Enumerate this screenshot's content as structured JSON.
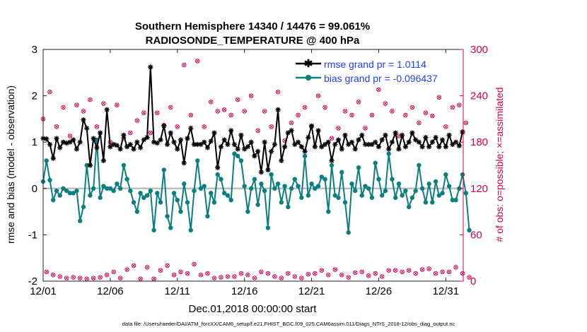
{
  "chart_data": {
    "type": "line",
    "title_line1": "Southern Hemisphere 14340 / 14476 = 99.061%",
    "title_line2": "RADIOSONDE_TEMPERATURE @ 400 hPa",
    "xlabel": "Dec.01,2018 00:00:00 start",
    "ylabel_left": "rmse and bias (model - observation)",
    "ylabel_right": "# of obs: o=possible; ×=assimilated",
    "footer": "data file: /Users/raeder/DAI/ATM_forcXX/CAM6_setup/f.e21.FHIST_BGC.f09_025.CAM6assim.011/Diags_NTrS_2018-12/obs_diag_output.nc",
    "xlim": [
      1,
      32.3
    ],
    "ylim_left": [
      -2,
      3
    ],
    "ylim_right": [
      0,
      300
    ],
    "x_ticks": [
      1,
      6,
      11,
      16,
      21,
      26,
      31
    ],
    "x_tick_labels": [
      "12/01",
      "12/06",
      "12/11",
      "12/16",
      "12/21",
      "12/26",
      "12/31"
    ],
    "y_left_ticks": [
      -2,
      -1,
      0,
      1,
      2,
      3
    ],
    "y_left_tick_labels": [
      "-2",
      "-1",
      "0",
      "1",
      "2",
      "3"
    ],
    "y_right_ticks": [
      0,
      60,
      120,
      180,
      240,
      300
    ],
    "y_right_tick_labels": [
      "0",
      "60",
      "120",
      "180",
      "240",
      "300"
    ],
    "time_step_days": 0.25,
    "legend": {
      "position": "top-right",
      "entries": [
        "rmse grand pr = 1.0114",
        "bias grand pr = -0.096437"
      ]
    },
    "colors": {
      "rmse": "#000000",
      "bias": "#0a7f7f",
      "obs_count": "#d6004f",
      "zero_line": "#c0c0c0",
      "legend_text": "#1f3fff",
      "right_axis": "#d6004f"
    },
    "series": [
      {
        "name": "rmse",
        "axis": "left",
        "marker": "asterisk",
        "values": [
          1.08,
          1.07,
          0.95,
          0.65,
          1.08,
          0.88,
          1.0,
          0.98,
          1.0,
          1.05,
          0.85,
          1.0,
          1.48,
          1.3,
          0.5,
          1.08,
          0.88,
          1.2,
          0.6,
          1.7,
          0.9,
          0.95,
          0.93,
          0.85,
          1.15,
          0.9,
          0.95,
          0.85,
          1.0,
          0.88,
          1.05,
          1.1,
          2.62,
          1.0,
          0.98,
          1.05,
          1.35,
          0.95,
          1.2,
          1.0,
          0.85,
          1.05,
          0.55,
          1.08,
          1.3,
          0.95,
          0.95,
          0.95,
          1.0,
          0.88,
          1.02,
          1.2,
          0.45,
          0.9,
          1.05,
          0.95,
          1.25,
          0.95,
          0.85,
          1.15,
          0.85,
          0.9,
          1.0,
          0.7,
          0.8,
          0.35,
          1.0,
          0.4,
          0.8,
          0.95,
          1.7,
          0.6,
          0.9,
          1.2,
          1.25,
          0.95,
          1.0,
          0.9,
          0.8,
          1.1,
          1.35,
          0.9,
          1.25,
          0.9,
          0.95,
          1.0,
          0.6,
          0.95,
          1.05,
          0.85,
          1.15,
          0.95,
          1.0,
          0.85,
          1.05,
          1.15,
          0.95,
          0.95,
          0.95,
          1.0,
          0.9,
          1.05,
          1.15,
          0.85,
          1.0,
          1.2,
          0.85,
          1.15,
          0.9,
          1.0,
          1.2,
          1.05,
          1.0,
          0.9,
          1.1,
          0.9,
          1.0,
          1.1,
          0.9,
          1.05,
          0.9,
          1.15,
          0.95,
          1.0,
          0.92,
          1.22
        ]
      },
      {
        "name": "bias",
        "axis": "left",
        "marker": "circle",
        "values": [
          0.15,
          0.6,
          0.18,
          -0.25,
          -0.05,
          -0.15,
          0.0,
          -0.05,
          -0.1,
          -0.1,
          -0.05,
          -0.7,
          -0.4,
          0.5,
          -0.15,
          0.0,
          1.05,
          -0.2,
          0.05,
          0.0,
          0.0,
          -0.05,
          0.1,
          0.0,
          0.5,
          0.2,
          -0.05,
          -0.3,
          -0.5,
          -0.1,
          -0.2,
          -0.15,
          -0.05,
          -0.9,
          -0.1,
          -0.3,
          0.4,
          -0.6,
          -0.85,
          -0.1,
          -0.25,
          -0.5,
          0.1,
          -0.3,
          -0.9,
          -0.05,
          0.6,
          0.0,
          0.05,
          -0.6,
          -0.1,
          -0.3,
          0.3,
          0.2,
          -0.1,
          -0.15,
          -0.25,
          0.75,
          0.7,
          0.6,
          0.05,
          -0.5,
          0.0,
          0.2,
          -0.35,
          0.1,
          -0.05,
          -0.85,
          0.3,
          0.0,
          0.1,
          -0.3,
          0.05,
          -0.4,
          0.0,
          0.2,
          0.05,
          -0.2,
          0.7,
          -0.15,
          0.1,
          0.0,
          0.05,
          0.25,
          0.2,
          -0.5,
          0.5,
          -0.15,
          -0.2,
          0.35,
          -0.3,
          -0.95,
          0.1,
          -0.05,
          0.45,
          -0.15,
          0.05,
          0.0,
          -0.2,
          0.55,
          0.2,
          -0.15,
          -0.05,
          0.75,
          0.2,
          -0.2,
          0.1,
          -0.15,
          -0.05,
          -0.4,
          -0.2,
          -0.05,
          0.5,
          0.0,
          -0.3,
          0.1,
          -0.3,
          0.15,
          -0.15,
          -0.1,
          0.3,
          0.05,
          -0.25,
          -0.25,
          0.0,
          0.3,
          -0.1,
          -0.9
        ]
      },
      {
        "name": "obs_possible",
        "axis": "right",
        "marker": "circle-open",
        "values": [
          210,
          12,
          245,
          8,
          200,
          6,
          225,
          4,
          188,
          5,
          228,
          4,
          220,
          3,
          235,
          4,
          200,
          5,
          230,
          8,
          180,
          12,
          228,
          4,
          185,
          15,
          192,
          20,
          208,
          3,
          218,
          18,
          192,
          3,
          218,
          14,
          202,
          20,
          225,
          8,
          200,
          12,
          280,
          10,
          215,
          22,
          285,
          8,
          200,
          10,
          232,
          4,
          220,
          5,
          222,
          6,
          215,
          6,
          235,
          10,
          220,
          8,
          240,
          4,
          195,
          12,
          220,
          10,
          200,
          6,
          245,
          4,
          182,
          10,
          205,
          6,
          215,
          4,
          225,
          9,
          200,
          10,
          240,
          14,
          225,
          8,
          185,
          15,
          198,
          8,
          220,
          5,
          215,
          11,
          232,
          12,
          198,
          7,
          215,
          10,
          248,
          6,
          230,
          14,
          220,
          14,
          188,
          12,
          215,
          14,
          225,
          10,
          205,
          15,
          218,
          16,
          214,
          10,
          238,
          12,
          200,
          12,
          225,
          18,
          228,
          10,
          205,
          5
        ]
      },
      {
        "name": "obs_assimilated",
        "axis": "right",
        "marker": "x",
        "values": [
          210,
          12,
          245,
          8,
          200,
          6,
          225,
          4,
          188,
          5,
          228,
          4,
          220,
          3,
          235,
          4,
          200,
          5,
          230,
          8,
          180,
          12,
          228,
          4,
          185,
          15,
          192,
          20,
          208,
          3,
          218,
          18,
          192,
          3,
          218,
          14,
          202,
          20,
          225,
          8,
          200,
          12,
          280,
          10,
          215,
          22,
          285,
          8,
          200,
          10,
          232,
          4,
          220,
          5,
          222,
          6,
          215,
          6,
          235,
          10,
          220,
          8,
          240,
          4,
          195,
          12,
          220,
          10,
          200,
          6,
          245,
          4,
          182,
          10,
          205,
          6,
          215,
          4,
          225,
          9,
          200,
          10,
          240,
          14,
          225,
          8,
          185,
          15,
          198,
          8,
          220,
          5,
          215,
          11,
          232,
          12,
          198,
          7,
          215,
          10,
          248,
          6,
          230,
          14,
          220,
          14,
          188,
          12,
          215,
          14,
          225,
          10,
          205,
          15,
          218,
          16,
          214,
          10,
          238,
          12,
          200,
          12,
          225,
          18,
          228,
          10,
          205,
          5
        ]
      }
    ]
  }
}
